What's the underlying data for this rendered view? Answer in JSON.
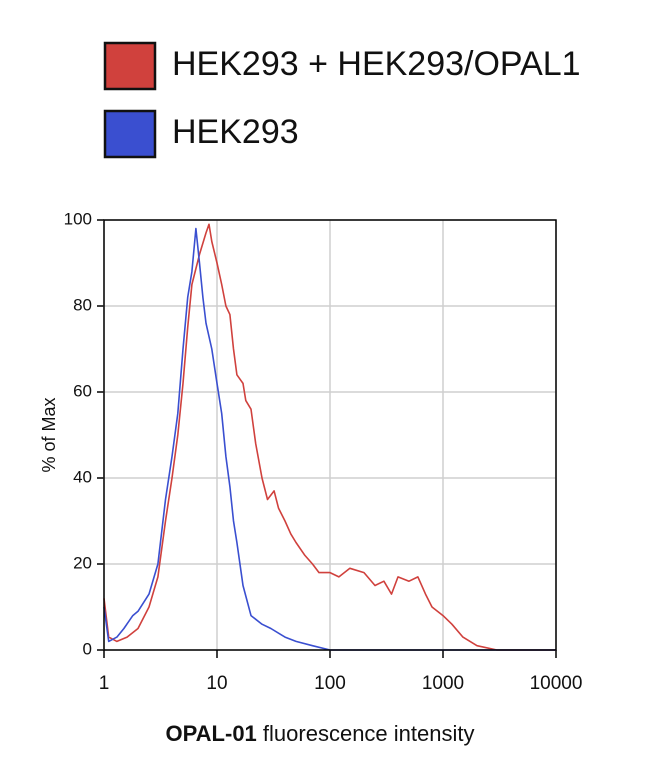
{
  "chart_data": {
    "type": "line",
    "xlabel": [
      "OPAL-01",
      "fluorescence intensity"
    ],
    "ylabel": "% of Max",
    "xscale": "log",
    "xlim": [
      1,
      10000
    ],
    "xticks": [
      1,
      10,
      100,
      1000,
      10000
    ],
    "ylim": [
      0,
      100
    ],
    "yticks": [
      0,
      20,
      40,
      60,
      80,
      100
    ],
    "grid": true,
    "legend": "top",
    "series": [
      {
        "name": "HEK293 + HEK293/OPAL1",
        "color": "#d0413d",
        "x": [
          1,
          1.1,
          1.3,
          1.6,
          2,
          2.5,
          3,
          3.5,
          4,
          4.5,
          5,
          5.5,
          6,
          7,
          8,
          8.5,
          9,
          10,
          11,
          12,
          13,
          14,
          15,
          17,
          18,
          20,
          22,
          25,
          28,
          32,
          35,
          40,
          45,
          50,
          60,
          70,
          80,
          100,
          120,
          150,
          200,
          250,
          300,
          350,
          400,
          500,
          600,
          700,
          800,
          1000,
          1200,
          1500,
          2000,
          3000,
          5000,
          10000
        ],
        "values": [
          12,
          3,
          2,
          3,
          5,
          10,
          17,
          30,
          40,
          50,
          62,
          75,
          85,
          92,
          97,
          99,
          95,
          90,
          85,
          80,
          78,
          70,
          64,
          62,
          58,
          56,
          48,
          40,
          35,
          37,
          33,
          30,
          27,
          25,
          22,
          20,
          18,
          18,
          17,
          19,
          18,
          15,
          16,
          13,
          17,
          16,
          17,
          13,
          10,
          8,
          6,
          3,
          1,
          0,
          0,
          0
        ]
      },
      {
        "name": "HEK293",
        "color": "#3a4fd0",
        "x": [
          1,
          1.1,
          1.3,
          1.5,
          1.8,
          2,
          2.5,
          3,
          3.5,
          4,
          4.5,
          5,
          5.5,
          6,
          6.5,
          7,
          7.5,
          8,
          9,
          10,
          11,
          12,
          13,
          14,
          15,
          17,
          20,
          25,
          30,
          40,
          50,
          70,
          100,
          200,
          1000,
          10000
        ],
        "values": [
          10,
          2,
          3,
          5,
          8,
          9,
          13,
          20,
          35,
          45,
          55,
          70,
          82,
          88,
          98,
          90,
          82,
          76,
          70,
          62,
          55,
          45,
          38,
          30,
          25,
          15,
          8,
          6,
          5,
          3,
          2,
          1,
          0,
          0,
          0,
          0
        ]
      }
    ]
  }
}
